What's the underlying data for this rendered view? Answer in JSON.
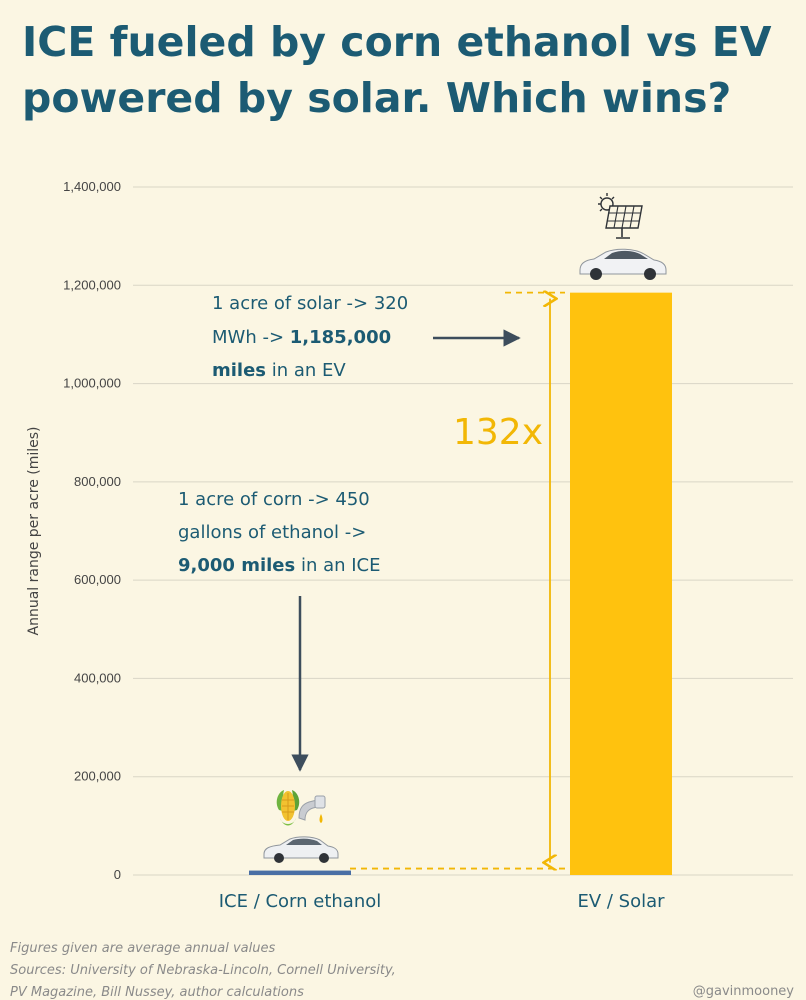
{
  "title": {
    "line1": "ICE fueled by corn ethanol vs EV",
    "line2": "powered by solar. Which wins?"
  },
  "chart_data": {
    "type": "bar",
    "categories": [
      "ICE / Corn ethanol",
      "EV / Solar"
    ],
    "values": [
      9000,
      1185000
    ],
    "ylabel": "Annual range per acre (miles)",
    "xlabel": "",
    "ylim": [
      0,
      1400000
    ],
    "yticks": [
      0,
      200000,
      400000,
      600000,
      800000,
      1000000,
      1200000,
      1400000
    ],
    "ytick_labels": [
      "0",
      "200,000",
      "400,000",
      "600,000",
      "800,000",
      "1,000,000",
      "1,200,000",
      "1,400,000"
    ],
    "grid": true,
    "colors": [
      "#4a6fa5",
      "#ffc20e"
    ],
    "annotations": {
      "solar": {
        "line1": "1 acre of solar -> 320",
        "line2_prefix": "MWh -> ",
        "line2_bold": "1,185,000",
        "line3_bold": "miles",
        "line3_suffix": " in an EV"
      },
      "corn": {
        "line1": "1 acre of corn -> 450",
        "line2": "gallons of ethanol ->",
        "line3_bold": "9,000 miles",
        "line3_suffix": " in an ICE"
      },
      "multiplier": "132x"
    }
  },
  "icons": [
    "corn-icon",
    "fuel-nozzle-icon",
    "sedan-car-icon",
    "solar-panel-icon",
    "sun-icon",
    "suv-car-icon"
  ],
  "footnotes": {
    "line1": "Figures given are average annual values",
    "line2": "Sources: University of Nebraska-Lincoln, Cornell University,",
    "line3": "PV Magazine, Bill Nussey, author calculations"
  },
  "handle": "@gavinmooney"
}
